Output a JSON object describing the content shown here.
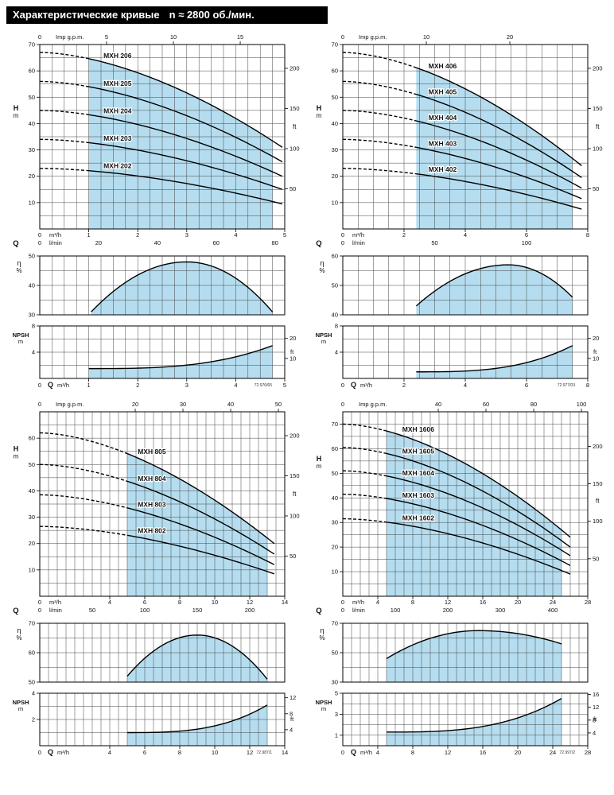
{
  "page": {
    "title": "Характеристические кривые",
    "subtitle": "n ≈ 2800 об./мин."
  },
  "labels": {
    "h": "H",
    "m": "m",
    "ft": "ft",
    "q": "Q",
    "m3h": "m³/h",
    "lmin": "l/min",
    "gpm": "Imp g.p.m.",
    "eta": "η",
    "pct": "%",
    "npsh": "NPSH"
  },
  "colors": {
    "shade": "#b5ddef",
    "grid": "#454545",
    "curve": "#000000",
    "title_bg": "#000000",
    "title_fg": "#ffffff"
  },
  "chart_data": [
    {
      "id": "mxh-200",
      "type": "line",
      "code": "72.976/65",
      "head": {
        "x_max": 5,
        "x_minor": 0.25,
        "x_ticks": [
          1,
          2,
          3,
          4,
          5
        ],
        "y_plot": 70,
        "y_minor": 5,
        "y_ticks": [
          10,
          20,
          30,
          40,
          50,
          60,
          70
        ],
        "h_label_y": 45,
        "ft_ticks": [
          50,
          100,
          150,
          200
        ],
        "gpm_ticks": [
          5,
          10,
          15
        ],
        "lmin_ticks": [
          20,
          40,
          60,
          80
        ],
        "range_start": 1,
        "range_end": 4.75,
        "curve_end": 4.95,
        "label_x": 1.3,
        "series": [
          {
            "name": "MXH 206",
            "h0": 67,
            "h_end": 31
          },
          {
            "name": "MXH 205",
            "h0": 56,
            "h_end": 25.5
          },
          {
            "name": "MXH 204",
            "h0": 45,
            "h_end": 20
          },
          {
            "name": "MXH 203",
            "h0": 34,
            "h_end": 15
          },
          {
            "name": "MXH 202",
            "h0": 23,
            "h_end": 9.5
          }
        ]
      },
      "eff": {
        "y_min": 30,
        "y_max": 50,
        "y_minor": 5,
        "y_ticks": [
          30,
          40,
          50
        ],
        "start": [
          1.05,
          31
        ],
        "peak": [
          3.0,
          48
        ],
        "end": [
          4.75,
          31
        ]
      },
      "npsh": {
        "y_max": 8,
        "y_minor": 2,
        "y_ticks": [
          4,
          8
        ],
        "ft_ticks": [
          10,
          20
        ],
        "base": 1.5,
        "end_val": 5.0
      }
    },
    {
      "id": "mxh-400",
      "type": "line",
      "code": "72.977/03",
      "head": {
        "x_max": 8,
        "x_minor": 0.5,
        "x_ticks": [
          2,
          4,
          6,
          8
        ],
        "y_plot": 70,
        "y_minor": 5,
        "y_ticks": [
          10,
          20,
          30,
          40,
          50,
          60,
          70
        ],
        "h_label_y": 45,
        "ft_ticks": [
          50,
          100,
          150,
          200
        ],
        "gpm_ticks": [
          10,
          20
        ],
        "lmin_ticks": [
          50,
          100
        ],
        "range_start": 2.4,
        "range_end": 7.5,
        "curve_end": 7.8,
        "label_x": 2.8,
        "series": [
          {
            "name": "MXH 406",
            "h0": 67,
            "h_end": 24
          },
          {
            "name": "MXH 405",
            "h0": 56,
            "h_end": 19.5
          },
          {
            "name": "MXH 404",
            "h0": 45,
            "h_end": 15.5
          },
          {
            "name": "MXH 403",
            "h0": 34,
            "h_end": 11.5
          },
          {
            "name": "MXH 402",
            "h0": 23,
            "h_end": 7.5
          }
        ]
      },
      "eff": {
        "y_min": 40,
        "y_max": 60,
        "y_minor": 5,
        "y_ticks": [
          40,
          50,
          60
        ],
        "start": [
          2.4,
          43
        ],
        "peak": [
          5.4,
          57
        ],
        "end": [
          7.5,
          46
        ]
      },
      "npsh": {
        "y_max": 8,
        "y_minor": 2,
        "y_ticks": [
          4,
          8
        ],
        "ft_ticks": [
          10,
          20
        ],
        "base": 1.0,
        "end_val": 5.0
      }
    },
    {
      "id": "mxh-800",
      "type": "line",
      "code": "72.987/1",
      "head": {
        "x_max": 14,
        "x_minor": 0.5,
        "x_ticks": [
          4,
          6,
          8,
          10,
          12,
          14
        ],
        "y_plot": 70,
        "y_minor": 5,
        "y_ticks": [
          10,
          20,
          30,
          40,
          50,
          60
        ],
        "h_label_y": 55,
        "ft_ticks": [
          50,
          100,
          150,
          200
        ],
        "gpm_ticks": [
          20,
          30,
          40,
          50
        ],
        "lmin_ticks": [
          50,
          100,
          150,
          200
        ],
        "range_start": 5,
        "range_end": 13,
        "curve_end": 13.4,
        "label_x": 5.6,
        "series": [
          {
            "name": "MXH 805",
            "h0": 62,
            "h_end": 20
          },
          {
            "name": "MXH 804",
            "h0": 50,
            "h_end": 16
          },
          {
            "name": "MXH 803",
            "h0": 38.5,
            "h_end": 12
          },
          {
            "name": "MXH 802",
            "h0": 26.5,
            "h_end": 8.5
          }
        ]
      },
      "eff": {
        "y_min": 50,
        "y_max": 70,
        "y_minor": 5,
        "y_ticks": [
          50,
          60,
          70
        ],
        "start": [
          5,
          52
        ],
        "peak": [
          9,
          66
        ],
        "end": [
          13,
          51
        ]
      },
      "npsh": {
        "y_max": 4,
        "y_minor": 1,
        "y_ticks": [
          2,
          4
        ],
        "ft_ticks": [
          4,
          8,
          12
        ],
        "base": 1.0,
        "end_val": 3.1
      }
    },
    {
      "id": "mxh-1600",
      "type": "line",
      "code": "72.997/2",
      "head": {
        "x_max": 28,
        "x_minor": 1,
        "x_ticks": [
          4,
          8,
          12,
          16,
          20,
          24,
          28
        ],
        "y_plot": 75,
        "y_minor": 5,
        "y_ticks": [
          10,
          20,
          30,
          40,
          50,
          60,
          70
        ],
        "h_label_y": 55,
        "ft_ticks": [
          50,
          100,
          150,
          200
        ],
        "gpm_ticks": [
          40,
          60,
          80,
          100
        ],
        "lmin_ticks": [
          100,
          200,
          300,
          400
        ],
        "range_start": 5,
        "range_end": 25,
        "curve_end": 26,
        "label_x": 6.8,
        "series": [
          {
            "name": "MXH 1606",
            "h0": 70,
            "h_end": 24
          },
          {
            "name": "MXH 1605",
            "h0": 60.5,
            "h_end": 20
          },
          {
            "name": "MXH 1604",
            "h0": 51,
            "h_end": 16.5
          },
          {
            "name": "MXH 1603",
            "h0": 41.5,
            "h_end": 12.5
          },
          {
            "name": "MXH 1602",
            "h0": 31.5,
            "h_end": 9
          }
        ]
      },
      "eff": {
        "y_min": 30,
        "y_max": 70,
        "y_minor": 10,
        "y_ticks": [
          30,
          50,
          70
        ],
        "start": [
          5,
          46
        ],
        "peak": [
          15.5,
          65
        ],
        "end": [
          25,
          56
        ]
      },
      "npsh": {
        "y_max": 5,
        "y_minor": 1,
        "y_ticks": [
          1,
          3,
          5
        ],
        "ft_ticks": [
          4,
          8,
          12,
          16
        ],
        "base": 1.3,
        "end_val": 4.5
      }
    }
  ]
}
